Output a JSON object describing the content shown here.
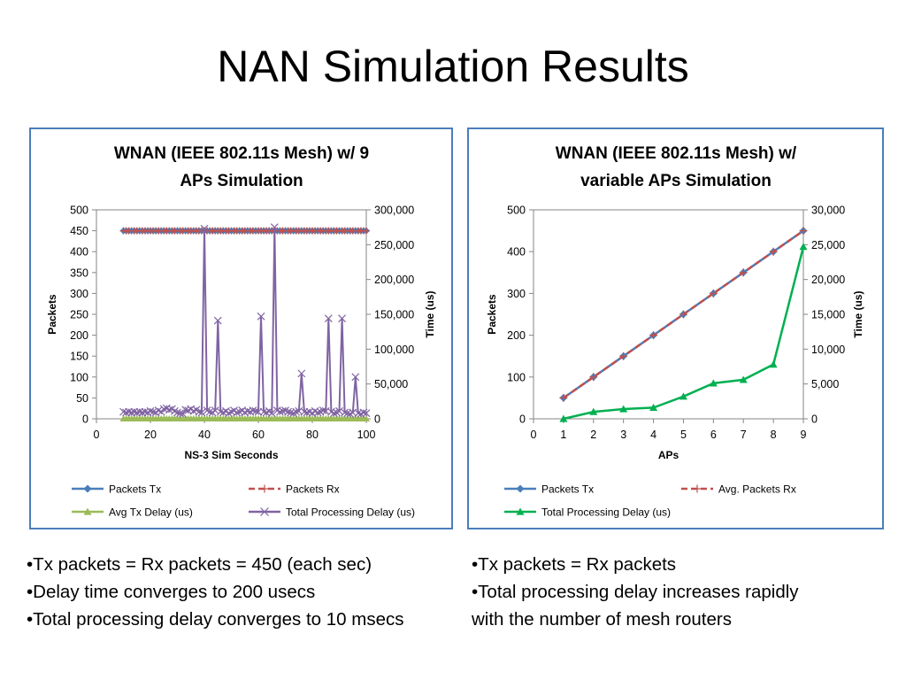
{
  "slide": {
    "title": "NAN Simulation Results"
  },
  "colors": {
    "tx": "#4a7ebb",
    "rx": "#c0504d",
    "avg_delay": "#9bbb59",
    "total_delay_purple": "#8064a2",
    "total_delay_green": "#00b050",
    "frame": "#4a7ebb"
  },
  "chart_data": [
    {
      "type": "line",
      "title_lines": [
        "WNAN (IEEE 802.11s Mesh) w/ 9",
        "APs Simulation"
      ],
      "xlabel": "NS-3 Sim Seconds",
      "ylabel": "Packets",
      "y2label": "Time (us)",
      "xlim": [
        0,
        100
      ],
      "ylim": [
        0,
        500
      ],
      "y2lim": [
        0,
        300000
      ],
      "xticks": [
        "0",
        "20",
        "40",
        "60",
        "80",
        "100"
      ],
      "yticks": [
        "0",
        "50",
        "100",
        "150",
        "200",
        "250",
        "300",
        "350",
        "400",
        "450",
        "500"
      ],
      "y2ticks": [
        "0",
        "50,000",
        "100,000",
        "150,000",
        "200,000",
        "250,000",
        "300,000"
      ],
      "legend_position": "bottom",
      "series": [
        {
          "name": "Packets Tx",
          "axis": "left",
          "marker": "diamond",
          "x_start": 10,
          "x_end": 100,
          "x_step": 1,
          "constant": 450
        },
        {
          "name": "Packets Rx",
          "axis": "left",
          "marker": "plus",
          "dashed": true,
          "x_start": 10,
          "x_end": 100,
          "x_step": 1,
          "constant": 450
        },
        {
          "name": "Avg Tx Delay (us)",
          "axis": "right",
          "marker": "triangle",
          "x_start": 10,
          "x_end": 100,
          "x_step": 1,
          "constant": 200
        },
        {
          "name": "Total Processing Delay (us)",
          "axis": "right",
          "marker": "x",
          "x": [
            10,
            11,
            12,
            13,
            14,
            15,
            16,
            17,
            18,
            19,
            20,
            21,
            22,
            23,
            24,
            25,
            26,
            27,
            28,
            29,
            30,
            31,
            32,
            33,
            34,
            35,
            36,
            37,
            38,
            39,
            40,
            41,
            42,
            43,
            44,
            45,
            46,
            47,
            48,
            49,
            50,
            51,
            52,
            53,
            54,
            55,
            56,
            57,
            58,
            59,
            60,
            61,
            62,
            63,
            64,
            65,
            66,
            67,
            68,
            69,
            70,
            71,
            72,
            73,
            74,
            75,
            76,
            77,
            78,
            79,
            80,
            81,
            82,
            83,
            84,
            85,
            86,
            87,
            88,
            89,
            90,
            91,
            92,
            93,
            94,
            95,
            96,
            97,
            98,
            99,
            100
          ],
          "y": [
            10000,
            9000,
            10000,
            9000,
            10000,
            9000,
            10000,
            9000,
            10000,
            9000,
            11000,
            10000,
            9000,
            12000,
            10000,
            14000,
            15000,
            13000,
            14000,
            11000,
            9000,
            8000,
            7000,
            13000,
            12000,
            14000,
            11000,
            13000,
            10000,
            9000,
            273000,
            12000,
            10000,
            9000,
            12000,
            141000,
            10000,
            9000,
            11000,
            8000,
            10000,
            12000,
            9000,
            10000,
            12000,
            9000,
            11000,
            10000,
            12000,
            11000,
            10000,
            147000,
            10000,
            9000,
            11000,
            8000,
            275000,
            12000,
            10000,
            11000,
            12000,
            10000,
            9000,
            8000,
            10000,
            11000,
            65000,
            10000,
            9000,
            10000,
            8000,
            11000,
            9000,
            10000,
            12000,
            11000,
            144000,
            10000,
            8000,
            9000,
            11000,
            144000,
            9000,
            8000,
            7000,
            9000,
            60000,
            8000,
            7000,
            9000,
            8000
          ]
        }
      ]
    },
    {
      "type": "line",
      "title_lines": [
        "WNAN (IEEE 802.11s Mesh) w/",
        "variable APs Simulation"
      ],
      "xlabel": "APs",
      "ylabel": "Packets",
      "y2label": "Time (us)",
      "xlim": [
        0,
        9
      ],
      "ylim": [
        0,
        500
      ],
      "y2lim": [
        0,
        30000
      ],
      "xticks": [
        "0",
        "1",
        "2",
        "3",
        "4",
        "5",
        "6",
        "7",
        "8",
        "9"
      ],
      "yticks": [
        "0",
        "100",
        "200",
        "300",
        "400",
        "500"
      ],
      "y2ticks": [
        "0",
        "5,000",
        "10,000",
        "15,000",
        "20,000",
        "25,000",
        "30,000"
      ],
      "legend_position": "bottom",
      "series": [
        {
          "name": "Packets Tx",
          "axis": "left",
          "marker": "diamond",
          "x": [
            1,
            2,
            3,
            4,
            5,
            6,
            7,
            8,
            9
          ],
          "y": [
            50,
            100,
            150,
            200,
            250,
            300,
            350,
            400,
            450
          ]
        },
        {
          "name": "Avg. Packets Rx",
          "axis": "left",
          "marker": "plus",
          "dashed": true,
          "x": [
            1,
            2,
            3,
            4,
            5,
            6,
            7,
            8,
            9
          ],
          "y": [
            50,
            100,
            150,
            200,
            250,
            300,
            350,
            400,
            450
          ]
        },
        {
          "name": "Total Processing Delay (us)",
          "axis": "right",
          "marker": "triangle",
          "x": [
            1,
            2,
            3,
            4,
            5,
            6,
            7,
            8,
            9
          ],
          "y": [
            0,
            1000,
            1400,
            1600,
            3200,
            5100,
            5600,
            7800,
            24700
          ]
        }
      ]
    }
  ],
  "bullets_left": [
    "•Tx packets = Rx packets = 450 (each sec)",
    "•Delay time converges to 200 usecs",
    "•Total processing delay converges to 10 msecs"
  ],
  "bullets_right": [
    "•Tx packets = Rx packets",
    "•Total processing delay increases rapidly",
    "with the number of mesh routers"
  ]
}
